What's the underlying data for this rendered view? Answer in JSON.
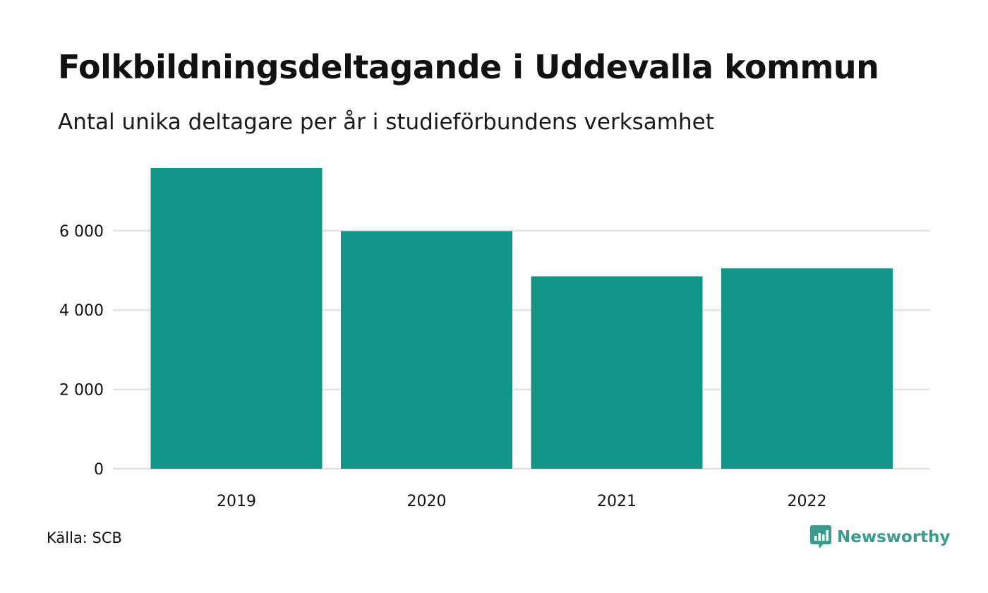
{
  "title": "Folkbildningsdeltagande i Uddevalla kommun",
  "subtitle": "Antal unika deltagare per år i studieförbundens verksamhet",
  "source": "Källa: SCB",
  "brand": {
    "name": "Newsworthy",
    "icon": "chart-speech-bubble-icon",
    "color": "#3d9a8e"
  },
  "colors": {
    "bar": "#13968a",
    "grid": "#e3e3e3"
  },
  "chart_data": {
    "type": "bar",
    "title": "",
    "xlabel": "",
    "ylabel": "",
    "categories": [
      "2019",
      "2020",
      "2021",
      "2022"
    ],
    "values": [
      7580,
      5990,
      4850,
      5050
    ],
    "ylim": [
      0,
      7580
    ],
    "yticks": [
      0,
      2000,
      4000,
      6000
    ],
    "ytick_labels": [
      "0",
      "2 000",
      "4 000",
      "6 000"
    ],
    "grid": true,
    "legend": "none"
  }
}
